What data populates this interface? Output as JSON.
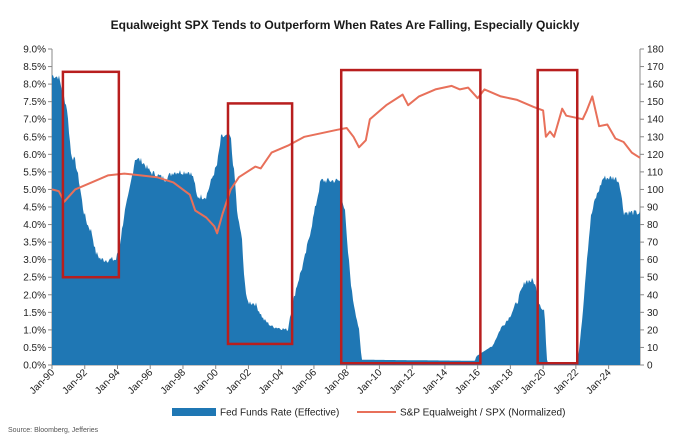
{
  "chart_data": {
    "type": "area",
    "title": "Equalweight SPX Tends to Outperform When Rates Are Falling, Especially Quickly",
    "source": "Source: Bloomberg, Jefferies",
    "x_tick_labels": [
      "Jan-90",
      "Jan-92",
      "Jan-94",
      "Jan-96",
      "Jan-98",
      "Jan-00",
      "Jan-02",
      "Jan-04",
      "Jan-06",
      "Jan-08",
      "Jan-10",
      "Jan-12",
      "Jan-14",
      "Jan-16",
      "Jan-18",
      "Jan-20",
      "Jan-22",
      "Jan-24"
    ],
    "xlim": [
      "1990-01",
      "2025-12"
    ],
    "y_left": {
      "label": "",
      "ylim": [
        0,
        9
      ],
      "ticks": [
        "0.0%",
        "0.5%",
        "1.0%",
        "1.5%",
        "2.0%",
        "2.5%",
        "3.0%",
        "3.5%",
        "4.0%",
        "4.5%",
        "5.0%",
        "5.5%",
        "6.0%",
        "6.5%",
        "7.0%",
        "7.5%",
        "8.0%",
        "8.5%",
        "9.0%"
      ]
    },
    "y_right": {
      "label": "",
      "ylim": [
        0,
        180
      ],
      "ticks": [
        "0",
        "10",
        "20",
        "30",
        "40",
        "50",
        "60",
        "70",
        "80",
        "90",
        "100",
        "110",
        "120",
        "130",
        "140",
        "150",
        "160",
        "170",
        "180"
      ]
    },
    "legend": {
      "position": "bottom"
    },
    "colors": {
      "fed_funds": "#1f77b4",
      "ratio": "#e8705a",
      "highlight_box": "#b81e1e",
      "axis": "#888888"
    },
    "series": [
      {
        "name": "Fed Funds Rate (Effective)",
        "type": "area",
        "axis": "left",
        "x": [
          "1990-01",
          "1990-06",
          "1990-12",
          "1991-03",
          "1991-06",
          "1991-09",
          "1991-12",
          "1992-03",
          "1992-06",
          "1992-09",
          "1993-01",
          "1993-12",
          "1994-03",
          "1994-06",
          "1994-09",
          "1995-02",
          "1995-07",
          "1996-01",
          "1996-12",
          "1997-06",
          "1998-06",
          "1998-09",
          "1998-11",
          "1999-06",
          "1999-11",
          "2000-02",
          "2000-05",
          "2000-12",
          "2001-01",
          "2001-03",
          "2001-05",
          "2001-08",
          "2001-09",
          "2001-11",
          "2001-12",
          "2002-06",
          "2002-12",
          "2003-06",
          "2004-06",
          "2004-07",
          "2004-12",
          "2005-06",
          "2005-12",
          "2006-06",
          "2007-08",
          "2007-09",
          "2007-12",
          "2008-01",
          "2008-03",
          "2008-05",
          "2008-10",
          "2008-12",
          "2015-11",
          "2015-12",
          "2016-12",
          "2017-06",
          "2017-12",
          "2018-06",
          "2018-12",
          "2019-06",
          "2019-08",
          "2019-10",
          "2020-01",
          "2020-02",
          "2020-03",
          "2020-04",
          "2022-02",
          "2022-03",
          "2022-06",
          "2022-09",
          "2022-12",
          "2023-03",
          "2023-06",
          "2023-09",
          "2024-06",
          "2024-09",
          "2024-12",
          "2025-12"
        ],
        "values": [
          8.25,
          8.2,
          7.3,
          6.0,
          5.8,
          5.2,
          4.4,
          4.0,
          3.8,
          3.2,
          3.0,
          3.0,
          3.5,
          4.3,
          4.8,
          5.9,
          5.8,
          5.5,
          5.3,
          5.5,
          5.5,
          5.3,
          4.8,
          4.8,
          5.4,
          5.7,
          6.5,
          6.5,
          6.0,
          5.3,
          4.2,
          3.7,
          3.0,
          2.1,
          1.8,
          1.75,
          1.3,
          1.1,
          1.0,
          1.3,
          2.2,
          3.0,
          4.1,
          5.25,
          5.25,
          4.9,
          4.3,
          3.6,
          2.8,
          2.0,
          1.0,
          0.15,
          0.12,
          0.25,
          0.55,
          1.05,
          1.35,
          1.8,
          2.4,
          2.4,
          2.15,
          1.8,
          1.55,
          1.6,
          0.65,
          0.05,
          0.08,
          0.3,
          1.5,
          3.0,
          4.2,
          4.7,
          5.0,
          5.33,
          5.33,
          5.2,
          4.35,
          4.33
        ]
      },
      {
        "name": "S&P Equalweight / SPX (Normalized)",
        "type": "line",
        "axis": "right",
        "x": [
          "1990-01",
          "1990-06",
          "1990-10",
          "1991-06",
          "1992-06",
          "1993-06",
          "1994-06",
          "1995-06",
          "1996-06",
          "1997-06",
          "1998-06",
          "1998-10",
          "1999-06",
          "1999-12",
          "2000-02",
          "2000-06",
          "2000-12",
          "2001-06",
          "2002-06",
          "2002-10",
          "2003-06",
          "2004-06",
          "2005-06",
          "2006-06",
          "2007-06",
          "2008-01",
          "2008-06",
          "2008-10",
          "2009-03",
          "2009-06",
          "2010-06",
          "2011-06",
          "2011-10",
          "2012-06",
          "2013-06",
          "2014-06",
          "2014-12",
          "2015-06",
          "2016-01",
          "2016-06",
          "2017-06",
          "2018-06",
          "2019-06",
          "2020-01",
          "2020-03",
          "2020-06",
          "2020-09",
          "2021-03",
          "2021-06",
          "2022-06",
          "2022-09",
          "2023-01",
          "2023-06",
          "2023-12",
          "2024-06",
          "2024-12",
          "2025-06",
          "2025-12"
        ],
        "values": [
          100,
          99,
          93,
          100,
          104,
          108,
          109,
          108,
          107,
          104,
          97,
          88,
          84,
          79,
          75,
          86,
          100,
          107,
          113,
          112,
          121,
          125,
          130,
          132,
          134,
          135,
          130,
          124,
          128,
          140,
          148,
          154,
          148,
          153,
          157,
          159,
          157,
          158,
          152,
          157,
          153,
          151,
          147,
          145,
          130,
          133,
          130,
          146,
          142,
          140,
          145,
          153,
          136,
          137,
          129,
          127,
          121,
          118
        ]
      }
    ],
    "highlight_periods": [
      {
        "start": "1990-09",
        "end": "1994-02",
        "ylim_left": [
          2.5,
          8.35
        ]
      },
      {
        "start": "2000-10",
        "end": "2004-09",
        "ylim_left": [
          0.6,
          7.45
        ]
      },
      {
        "start": "2007-09",
        "end": "2016-03",
        "ylim_left": [
          0.05,
          8.4
        ]
      },
      {
        "start": "2019-09",
        "end": "2022-02",
        "ylim_left": [
          0.05,
          8.4
        ]
      }
    ]
  }
}
